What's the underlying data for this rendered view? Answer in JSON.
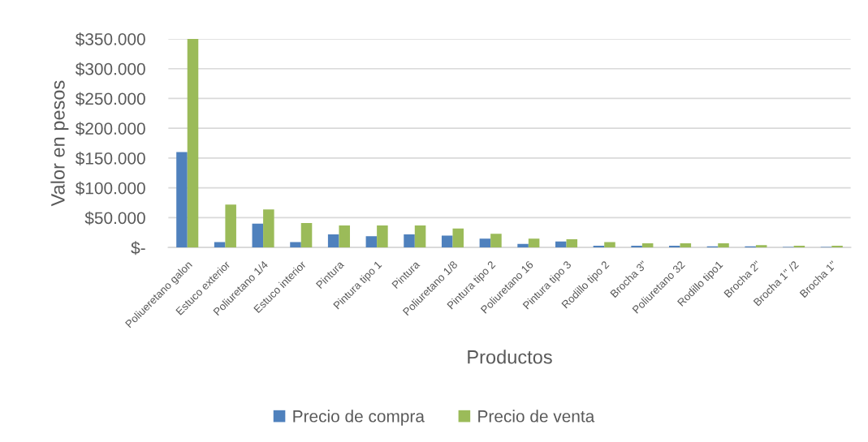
{
  "chart_data": {
    "type": "bar",
    "xlabel": "Productos",
    "ylabel": "Valor en pesos",
    "categories": [
      "Poliueretano galon",
      "Estuco exterior",
      "Poliuretano 1/4",
      "Estuco interior",
      "Pintura",
      "Pintura tipo 1",
      "Pintura",
      "Poliuretano 1/8",
      "Pintura tipo 2",
      "Poliuretano 16",
      "Pintura tipo 3",
      "Rodillo tipo 2",
      "Brocha 3\"",
      "Poliuretano 32",
      "Rodillo tipo1",
      "Brocha 2\"",
      "Brocha 1\" /2",
      "Brocha 1\""
    ],
    "series": [
      {
        "name": "Precio de compra",
        "color": "#4f81bd",
        "values": [
          160000,
          9000,
          40000,
          9000,
          22000,
          19000,
          22000,
          20000,
          15000,
          6000,
          10000,
          3000,
          3000,
          3000,
          2000,
          2000,
          1000,
          1000
        ]
      },
      {
        "name": "Precio de venta",
        "color": "#9bbb59",
        "values": [
          350000,
          72000,
          64000,
          41000,
          37000,
          37000,
          37000,
          32000,
          23000,
          15000,
          14000,
          9000,
          7000,
          7000,
          7000,
          4000,
          3000,
          3000
        ]
      }
    ],
    "ylim": [
      0,
      350000
    ],
    "yticks": [
      {
        "value": 0,
        "label": "$-"
      },
      {
        "value": 50000,
        "label": "$50.000"
      },
      {
        "value": 100000,
        "label": "$100.000"
      },
      {
        "value": 150000,
        "label": "$150.000"
      },
      {
        "value": 200000,
        "label": "$200.000"
      },
      {
        "value": 250000,
        "label": "$250.000"
      },
      {
        "value": 300000,
        "label": "$300.000"
      },
      {
        "value": 350000,
        "label": "$350.000"
      }
    ],
    "grid": "y",
    "legend": "bottom"
  }
}
